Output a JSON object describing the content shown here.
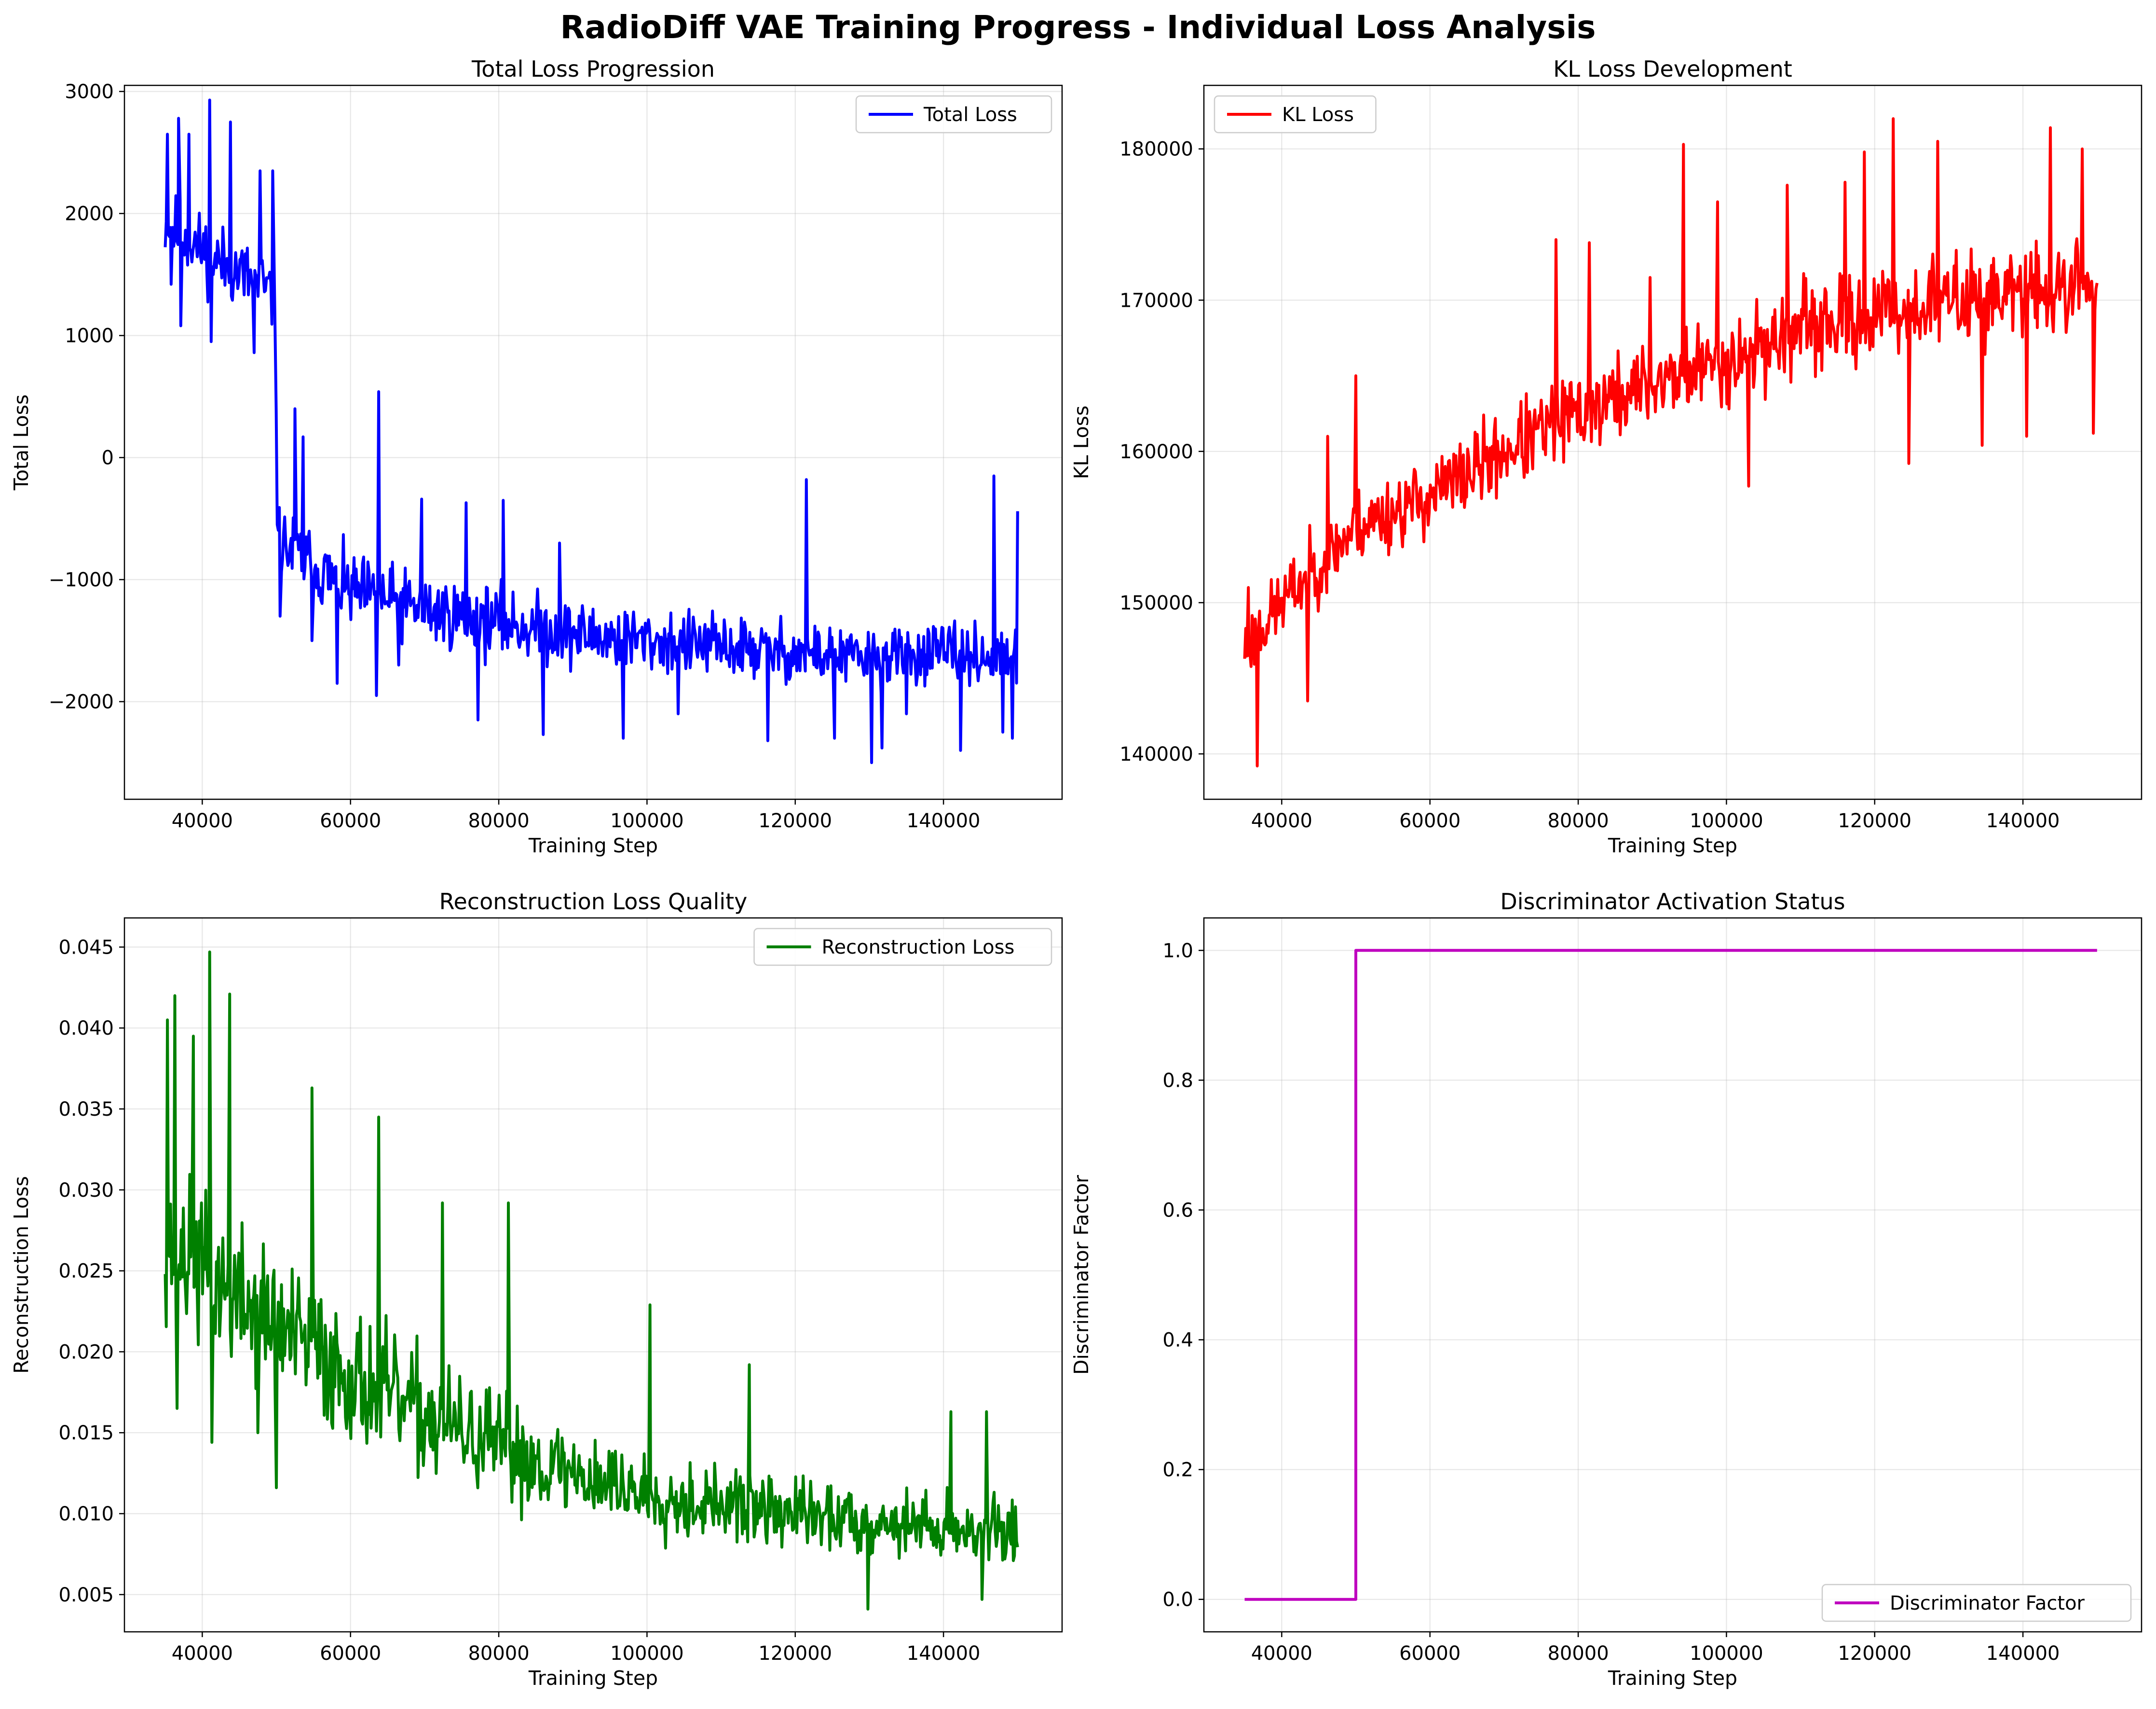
{
  "suptitle": "RadioDiff VAE Training Progress - Individual Loss Analysis",
  "chart_data": [
    {
      "type": "line",
      "id": "total",
      "title": "Total Loss Progression",
      "xlabel": "Training Step",
      "ylabel": "Total Loss",
      "xlim": [
        29500,
        156000
      ],
      "ylim": [
        -2800,
        3050
      ],
      "xticks": [
        40000,
        60000,
        80000,
        100000,
        120000,
        140000
      ],
      "yticks": [
        -2000,
        -1000,
        0,
        1000,
        2000,
        3000
      ],
      "yticklabels": [
        "−2000",
        "−1000",
        "0",
        "1000",
        "2000",
        "3000"
      ],
      "grid": true,
      "legend_loc": "upper right",
      "series": [
        {
          "name": "Total Loss",
          "color": "#0000ff",
          "x_start": 35000,
          "x_end": 150000,
          "smooth_keypoints": [
            [
              35000,
              1900
            ],
            [
              37000,
              1850
            ],
            [
              40000,
              1700
            ],
            [
              44000,
              1550
            ],
            [
              48000,
              1400
            ],
            [
              49800,
              1300
            ],
            [
              50200,
              -700
            ],
            [
              54000,
              -850
            ],
            [
              60000,
              -1100
            ],
            [
              70000,
              -1250
            ],
            [
              80000,
              -1350
            ],
            [
              90000,
              -1450
            ],
            [
              100000,
              -1500
            ],
            [
              110000,
              -1550
            ],
            [
              120000,
              -1600
            ],
            [
              130000,
              -1650
            ],
            [
              140000,
              -1600
            ],
            [
              150000,
              -1650
            ]
          ],
          "spikes": [
            [
              35300,
              2650
            ],
            [
              36800,
              2780
            ],
            [
              38200,
              2650
            ],
            [
              41000,
              2930
            ],
            [
              43800,
              2750
            ],
            [
              47800,
              2350
            ],
            [
              49500,
              2350
            ],
            [
              35800,
              1420
            ],
            [
              37100,
              1080
            ],
            [
              41200,
              950
            ],
            [
              47000,
              860
            ],
            [
              63800,
              540
            ],
            [
              50500,
              -1300
            ],
            [
              53600,
              170
            ],
            [
              52500,
              400
            ],
            [
              54800,
              -1500
            ],
            [
              58200,
              -1850
            ],
            [
              63500,
              -1950
            ],
            [
              66500,
              -1700
            ],
            [
              69600,
              -340
            ],
            [
              75600,
              -370
            ],
            [
              77200,
              -2150
            ],
            [
              80600,
              -350
            ],
            [
              86000,
              -2270
            ],
            [
              88200,
              -700
            ],
            [
              96800,
              -2300
            ],
            [
              104200,
              -2100
            ],
            [
              116300,
              -2320
            ],
            [
              121500,
              -180
            ],
            [
              125300,
              -2300
            ],
            [
              130300,
              -2500
            ],
            [
              131700,
              -2380
            ],
            [
              135000,
              -2100
            ],
            [
              142300,
              -2400
            ],
            [
              146800,
              -150
            ],
            [
              148000,
              -2250
            ],
            [
              149300,
              -2300
            ],
            [
              150000,
              -440
            ]
          ],
          "noise": [
            [
              35000,
              380
            ],
            [
              50000,
              420
            ],
            [
              150000,
              300
            ]
          ],
          "samples": 800,
          "seed": 11
        }
      ]
    },
    {
      "type": "line",
      "id": "kl",
      "title": "KL Loss Development",
      "xlabel": "Training Step",
      "ylabel": "KL Loss",
      "xlim": [
        29500,
        156000
      ],
      "ylim": [
        137000,
        184200
      ],
      "xticks": [
        40000,
        60000,
        80000,
        100000,
        120000,
        140000
      ],
      "yticks": [
        140000,
        150000,
        160000,
        170000,
        180000
      ],
      "yticklabels": [
        "140000",
        "150000",
        "160000",
        "170000",
        "180000"
      ],
      "grid": true,
      "legend_loc": "upper left",
      "series": [
        {
          "name": "KL Loss",
          "color": "#ff0000",
          "x_start": 35000,
          "x_end": 150000,
          "smooth_keypoints": [
            [
              35000,
              147000
            ],
            [
              40000,
              150000
            ],
            [
              45000,
              152500
            ],
            [
              50000,
              155000
            ],
            [
              60000,
              157000
            ],
            [
              70000,
              160000
            ],
            [
              80000,
              162500
            ],
            [
              90000,
              164500
            ],
            [
              100000,
              166000
            ],
            [
              110000,
              168000
            ],
            [
              120000,
              169000
            ],
            [
              130000,
              170000
            ],
            [
              140000,
              170500
            ],
            [
              150000,
              171000
            ]
          ],
          "spikes": [
            [
              36700,
              139200
            ],
            [
              35500,
              151000
            ],
            [
              43500,
              143500
            ],
            [
              50000,
              165000
            ],
            [
              77000,
              174000
            ],
            [
              81500,
              173800
            ],
            [
              89700,
              171500
            ],
            [
              94200,
              180300
            ],
            [
              98800,
              176500
            ],
            [
              103000,
              157700
            ],
            [
              108200,
              177600
            ],
            [
              116000,
              177800
            ],
            [
              118600,
              179800
            ],
            [
              122500,
              182000
            ],
            [
              124600,
              159200
            ],
            [
              128500,
              180500
            ],
            [
              134500,
              160400
            ],
            [
              140500,
              161000
            ],
            [
              143700,
              181400
            ],
            [
              149500,
              161200
            ],
            [
              148000,
              180000
            ],
            [
              46200,
              161000
            ]
          ],
          "noise": [
            [
              35000,
              3000
            ],
            [
              80000,
              3800
            ],
            [
              150000,
              4000
            ]
          ],
          "samples": 800,
          "seed": 23
        }
      ]
    },
    {
      "type": "line",
      "id": "recon",
      "title": "Reconstruction Loss Quality",
      "xlabel": "Training Step",
      "ylabel": "Reconstruction Loss",
      "xlim": [
        29500,
        156000
      ],
      "ylim": [
        0.0027,
        0.0468
      ],
      "xticks": [
        40000,
        60000,
        80000,
        100000,
        120000,
        140000
      ],
      "yticks": [
        0.005,
        0.01,
        0.015,
        0.02,
        0.025,
        0.03,
        0.035,
        0.04,
        0.045
      ],
      "yticklabels": [
        "0.005",
        "0.010",
        "0.015",
        "0.020",
        "0.025",
        "0.030",
        "0.035",
        "0.040",
        "0.045"
      ],
      "grid": true,
      "legend_loc": "upper right",
      "series": [
        {
          "name": "Reconstruction Loss",
          "color": "#008000",
          "x_start": 35000,
          "x_end": 150000,
          "smooth_keypoints": [
            [
              35000,
              0.027
            ],
            [
              40000,
              0.025
            ],
            [
              50000,
              0.0215
            ],
            [
              60000,
              0.0185
            ],
            [
              70000,
              0.016
            ],
            [
              80000,
              0.014
            ],
            [
              90000,
              0.0125
            ],
            [
              100000,
              0.0112
            ],
            [
              110000,
              0.0105
            ],
            [
              120000,
              0.01
            ],
            [
              130000,
              0.0095
            ],
            [
              140000,
              0.0092
            ],
            [
              150000,
              0.0088
            ]
          ],
          "spikes": [
            [
              35300,
              0.0405
            ],
            [
              36300,
              0.042
            ],
            [
              36600,
              0.0165
            ],
            [
              38800,
              0.0395
            ],
            [
              41000,
              0.0447
            ],
            [
              41300,
              0.0144
            ],
            [
              43700,
              0.0421
            ],
            [
              47500,
              0.015
            ],
            [
              50000,
              0.0116
            ],
            [
              54800,
              0.0363
            ],
            [
              63800,
              0.0345
            ],
            [
              72400,
              0.0292
            ],
            [
              81300,
              0.0292
            ],
            [
              100400,
              0.0229
            ],
            [
              113800,
              0.0192
            ],
            [
              129800,
              0.0041
            ],
            [
              141000,
              0.0163
            ],
            [
              145800,
              0.0163
            ],
            [
              145200,
              0.0047
            ]
          ],
          "noise": [
            [
              35000,
              0.0065
            ],
            [
              60000,
              0.0055
            ],
            [
              100000,
              0.0032
            ],
            [
              150000,
              0.0025
            ]
          ],
          "samples": 800,
          "seed": 37
        }
      ]
    },
    {
      "type": "line",
      "id": "disc",
      "title": "Discriminator Activation Status",
      "xlabel": "Training Step",
      "ylabel": "Discriminator Factor",
      "xlim": [
        29500,
        156000
      ],
      "ylim": [
        -0.05,
        1.05
      ],
      "xticks": [
        40000,
        60000,
        80000,
        100000,
        120000,
        140000
      ],
      "yticks": [
        0.0,
        0.2,
        0.4,
        0.6,
        0.8,
        1.0
      ],
      "yticklabels": [
        "0.0",
        "0.2",
        "0.4",
        "0.6",
        "0.8",
        "1.0"
      ],
      "grid": true,
      "legend_loc": "lower right",
      "series": [
        {
          "name": "Discriminator Factor",
          "color": "#bf00bf",
          "points": [
            [
              35000,
              0.0
            ],
            [
              50000,
              0.0
            ],
            [
              50000,
              1.0
            ],
            [
              150000,
              1.0
            ]
          ]
        }
      ]
    }
  ]
}
